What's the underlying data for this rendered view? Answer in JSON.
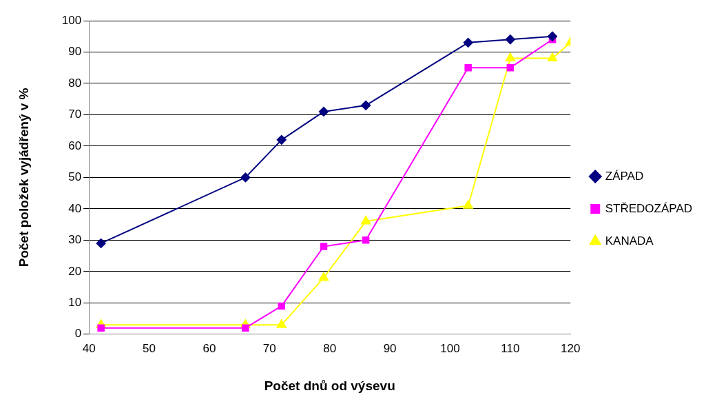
{
  "chart_data": {
    "type": "line",
    "xlabel": "Počet dnů od výsevu",
    "ylabel": "Počet položek vyjádřený v %",
    "xlim": [
      40,
      120
    ],
    "xticks": [
      40,
      50,
      60,
      70,
      80,
      90,
      100,
      110,
      120
    ],
    "ylim": [
      0,
      100
    ],
    "yticks": [
      0,
      10,
      20,
      30,
      40,
      50,
      60,
      70,
      80,
      90,
      100
    ],
    "grid": "y",
    "legend": "right",
    "line_style": "solid",
    "series": [
      {
        "name": "ZÁPAD",
        "color": "#000080",
        "marker": "diamond",
        "x": [
          42,
          66,
          72,
          79,
          86,
          103,
          110,
          117
        ],
        "values": [
          29,
          50,
          62,
          71,
          73,
          93,
          94,
          95
        ]
      },
      {
        "name": "STŘEDOZÁPAD",
        "color": "#ff00ff",
        "marker": "square",
        "x": [
          42,
          66,
          72,
          79,
          86,
          103,
          110,
          117
        ],
        "values": [
          2,
          2,
          9,
          28,
          30,
          85,
          85,
          94
        ]
      },
      {
        "name": "KANADA",
        "color": "#ffff00",
        "marker": "triangle",
        "x": [
          42,
          66,
          72,
          79,
          86,
          103,
          110,
          117,
          120
        ],
        "values": [
          3,
          3,
          3,
          18,
          36,
          41,
          88,
          88,
          93
        ]
      }
    ]
  }
}
